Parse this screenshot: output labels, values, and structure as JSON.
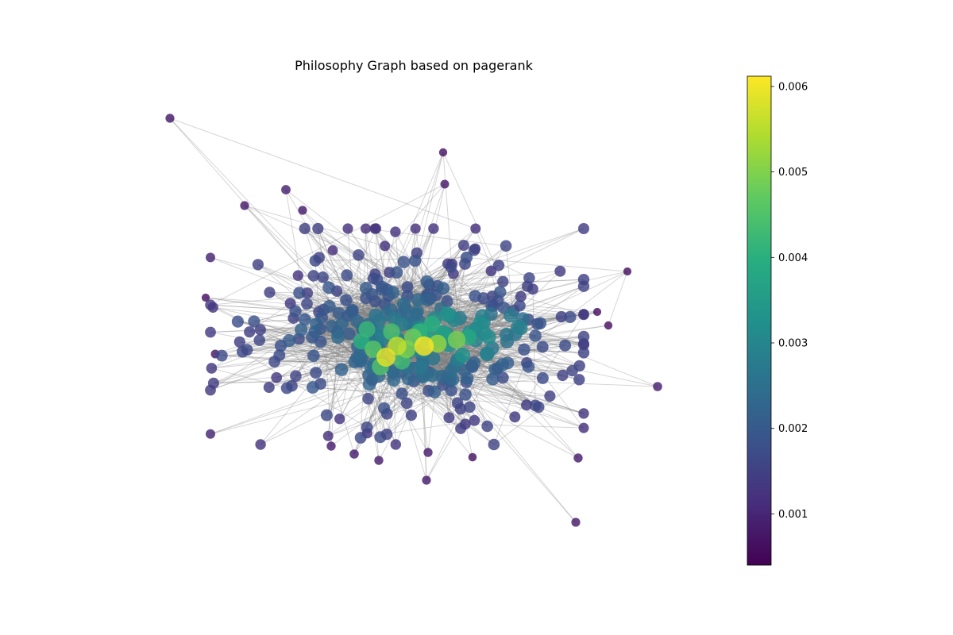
{
  "chart_data": {
    "type": "network",
    "title": "Philosophy Graph based on pagerank",
    "node_size_and_color_metric": "pagerank",
    "colormap": "viridis",
    "colorbar": {
      "range": [
        0.0004,
        0.00612
      ],
      "ticks": [
        0.001,
        0.002,
        0.003,
        0.004,
        0.005,
        0.006
      ],
      "tick_labels": [
        "0.001",
        "0.002",
        "0.003",
        "0.004",
        "0.005",
        "0.006"
      ]
    },
    "edge_color": "#808080",
    "axes_visible": false
  }
}
